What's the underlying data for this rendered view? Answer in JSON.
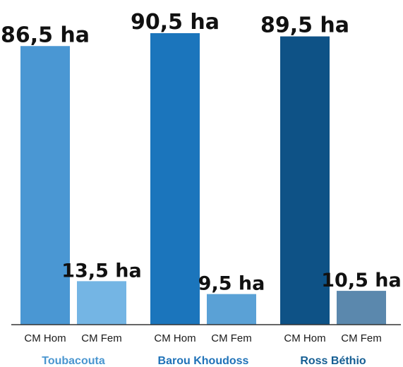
{
  "chart_data": {
    "type": "bar",
    "title": "",
    "xlabel": "",
    "ylabel": "",
    "ylim": [
      0,
      90.5
    ],
    "unit": "ha",
    "groups": [
      {
        "name": "Toubacouta",
        "label_color": "#4a96d0",
        "bars": [
          {
            "category": "CM Hom",
            "value": 86.5,
            "label": "86,5 ha",
            "color": "#4a97d3"
          },
          {
            "category": "CM Fem",
            "value": 13.5,
            "label": "13,5 ha",
            "color": "#74b5e4"
          }
        ]
      },
      {
        "name": "Barou Khoudoss",
        "label_color": "#1f72b8",
        "bars": [
          {
            "category": "CM Hom",
            "value": 90.5,
            "label": "90,5 ha",
            "color": "#1b75bc"
          },
          {
            "category": "CM Fem",
            "value": 9.5,
            "label": "9,5 ha",
            "color": "#5aa1d6"
          }
        ]
      },
      {
        "name": "Ross Béthio",
        "label_color": "#155e93",
        "bars": [
          {
            "category": "CM Hom",
            "value": 89.5,
            "label": "89,5 ha",
            "color": "#0e5286"
          },
          {
            "category": "CM Fem",
            "value": 10.5,
            "label": "10,5 ha",
            "color": "#5b88ad"
          }
        ]
      }
    ],
    "grid": false,
    "legend": "none"
  }
}
